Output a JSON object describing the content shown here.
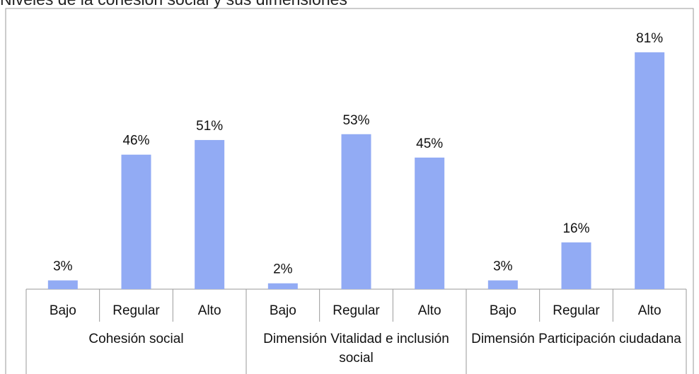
{
  "chart_data": {
    "type": "bar",
    "title": "Niveles de la cohesión social y sus dimensiones",
    "groups": [
      "Cohesión social",
      "Dimensión Vitalidad e inclusión social",
      "Dimensión Participación ciudadana"
    ],
    "categories": [
      "Bajo",
      "Regular",
      "Alto",
      "Bajo",
      "Regular",
      "Alto",
      "Bajo",
      "Regular",
      "Alto"
    ],
    "values": [
      3,
      46,
      51,
      2,
      53,
      45,
      3,
      16,
      81
    ],
    "value_labels": [
      "3%",
      "46%",
      "51%",
      "2%",
      "53%",
      "45%",
      "3%",
      "16%",
      "81%"
    ],
    "color": "#92abf4"
  }
}
